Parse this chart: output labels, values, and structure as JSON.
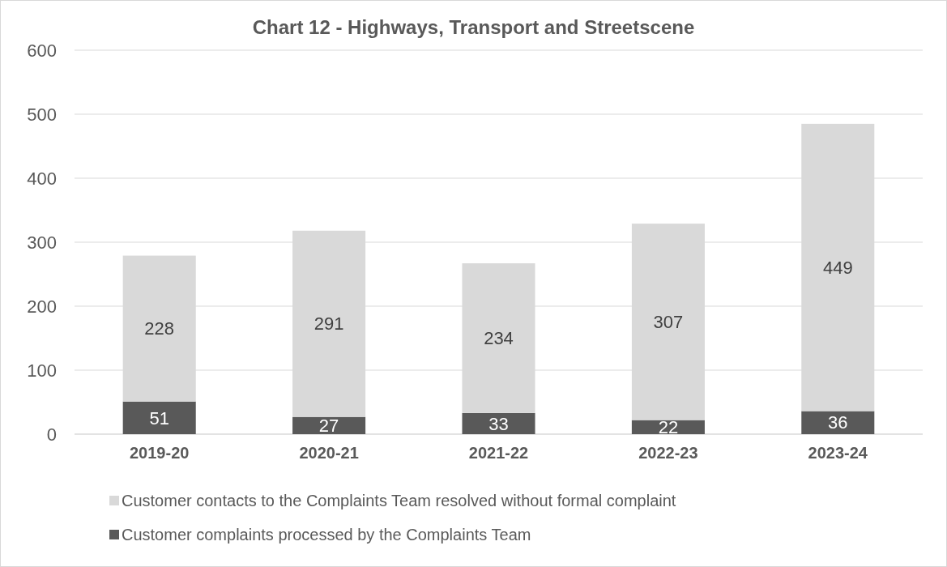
{
  "chart_data": {
    "type": "bar",
    "title": "Chart 12 - Highways, Transport and Streetscene",
    "categories": [
      "2019-20",
      "2020-21",
      "2021-22",
      "2022-23",
      "2023-24"
    ],
    "stacked": true,
    "series": [
      {
        "name": "Customer complaints processed by the Complaints Team",
        "color": "#595959",
        "values": [
          51,
          27,
          33,
          22,
          36
        ]
      },
      {
        "name": "Customer contacts to the Complaints Team resolved without formal complaint",
        "color": "#d9d9d9",
        "values": [
          228,
          291,
          234,
          307,
          449
        ]
      }
    ],
    "ylim": [
      0,
      600
    ],
    "yticks": [
      0,
      100,
      200,
      300,
      400,
      500,
      600
    ],
    "grid": "y",
    "legend": "bottom",
    "data_labels": true
  }
}
